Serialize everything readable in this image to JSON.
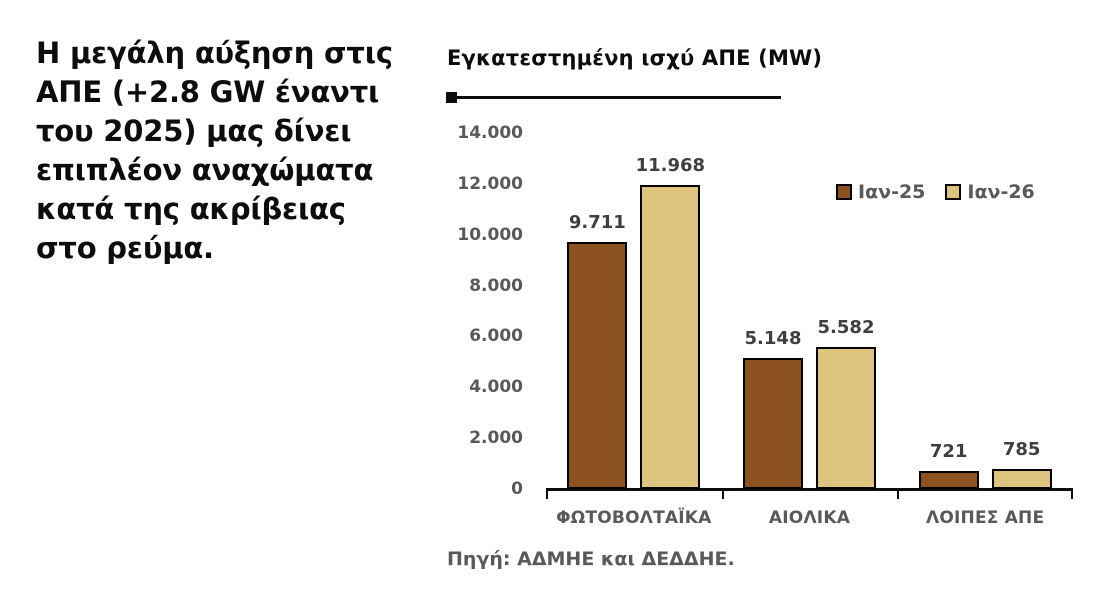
{
  "left_text": {
    "lines": [
      "Η μεγάλη αύξηση στις",
      "ΑΠΕ (+2.8 GW έναντι",
      "του 2025) μας δίνει",
      "επιπλέον αναχώματα",
      "κατά της ακρίβειας",
      "στο ρεύμα."
    ]
  },
  "colors": {
    "background": "#ffffff",
    "headline_text": "#0d0d0d",
    "title_text": "#0d0d0d",
    "axis_text": "#595959",
    "data_label_text": "#3f3f3f",
    "bar_border": "#000000",
    "series_ian25": "#8c521f",
    "series_ian26": "#dec47d"
  },
  "chart_data": {
    "type": "bar",
    "title": "Εγκατεστημένη ισχύ ΑΠΕ (MW)",
    "categories": [
      "ΦΩΤΟΒΟΛΤΑΪΚΑ",
      "ΑΙΟΛΙΚΑ",
      "ΛΟΙΠΕΣ ΑΠΕ"
    ],
    "series": [
      {
        "name": "Ιαν-25",
        "color": "#8c521f",
        "values": [
          9711,
          5148,
          721
        ],
        "labels": [
          "9.711",
          "5.148",
          "721"
        ]
      },
      {
        "name": "Ιαν-26",
        "color": "#dec47d",
        "values": [
          11968,
          5582,
          785
        ],
        "labels": [
          "11.968",
          "5.582",
          "785"
        ]
      }
    ],
    "xlabel": "",
    "ylabel": "",
    "ylim": [
      0,
      14000
    ],
    "ytick_step": 2000,
    "ytick_labels": [
      "0",
      "2.000",
      "4.000",
      "6.000",
      "8.000",
      "10.000",
      "12.000",
      "14.000"
    ],
    "grid": false,
    "legend_position": "inside-top-right",
    "source": "Πηγή: ΑΔΜΗΕ και ΔΕΔΔΗΕ."
  }
}
